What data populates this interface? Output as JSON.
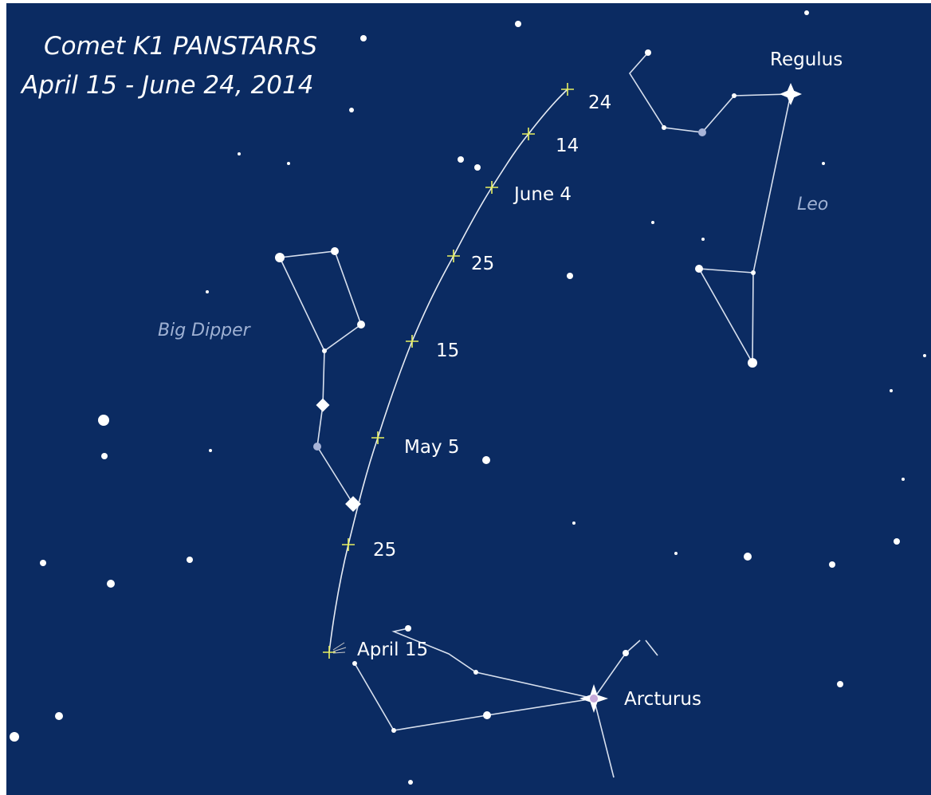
{
  "title": [
    "Comet K1 PANSTARRS",
    "April 15 - June 24, 2014"
  ],
  "path_labels": [
    "April 15",
    "25",
    "May 5",
    "15",
    "25",
    "June 4",
    "14",
    "24"
  ],
  "star_labels": [
    "Regulus",
    "Arcturus"
  ],
  "constellation_labels": [
    "Big Dipper",
    "Leo"
  ]
}
